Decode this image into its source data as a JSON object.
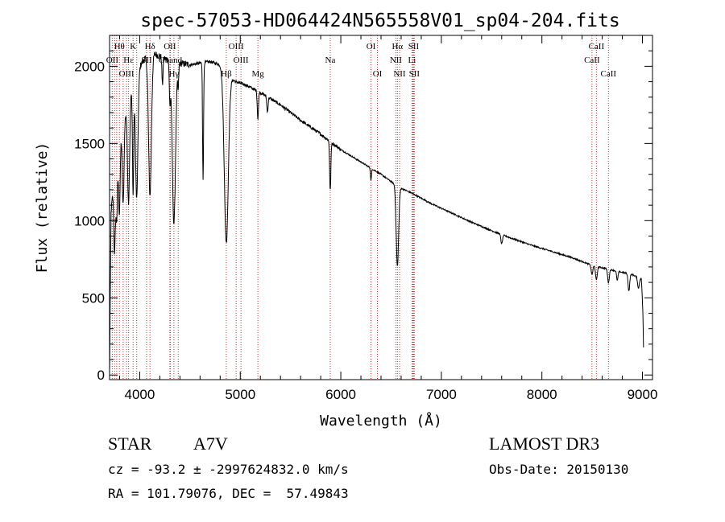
{
  "chart_data": {
    "type": "line",
    "title": "spec-57053-HD064424N565558V01_sp04-204.fits",
    "xlabel": "Wavelength (Å)",
    "ylabel": "Flux (relative)",
    "xlim": [
      3700,
      9100
    ],
    "ylim": [
      -30,
      2200
    ],
    "xticks": [
      4000,
      5000,
      6000,
      7000,
      8000,
      9000
    ],
    "yticks": [
      0,
      500,
      1000,
      1500,
      2000
    ],
    "grid": false,
    "colors": {
      "spectrum": "#000000",
      "lines": "#cc3333"
    },
    "spectrum": {
      "continuum": [
        [
          3700,
          0
        ],
        [
          3715,
          1050
        ],
        [
          3740,
          1250
        ],
        [
          3780,
          1400
        ],
        [
          3820,
          1620
        ],
        [
          3860,
          1700
        ],
        [
          3900,
          1800
        ],
        [
          3950,
          1900
        ],
        [
          4000,
          2000
        ],
        [
          4050,
          2050
        ],
        [
          4150,
          2080
        ],
        [
          4250,
          2050
        ],
        [
          4400,
          2020
        ],
        [
          4500,
          2010
        ],
        [
          4600,
          2020
        ],
        [
          4700,
          2030
        ],
        [
          4800,
          2010
        ],
        [
          4870,
          1950
        ],
        [
          4950,
          1900
        ],
        [
          5050,
          1880
        ],
        [
          5200,
          1830
        ],
        [
          5400,
          1750
        ],
        [
          5600,
          1650
        ],
        [
          5800,
          1560
        ],
        [
          6000,
          1460
        ],
        [
          6200,
          1380
        ],
        [
          6400,
          1300
        ],
        [
          6550,
          1230
        ],
        [
          6600,
          1210
        ],
        [
          6700,
          1180
        ],
        [
          6900,
          1110
        ],
        [
          7100,
          1050
        ],
        [
          7300,
          990
        ],
        [
          7500,
          935
        ],
        [
          7700,
          885
        ],
        [
          7900,
          840
        ],
        [
          8100,
          800
        ],
        [
          8300,
          760
        ],
        [
          8500,
          710
        ],
        [
          8700,
          680
        ],
        [
          8900,
          650
        ],
        [
          8990,
          620
        ],
        [
          9005,
          400
        ],
        [
          9010,
          180
        ]
      ],
      "absorption": [
        [
          3750,
          500,
          8
        ],
        [
          3771,
          350,
          7
        ],
        [
          3798,
          450,
          8
        ],
        [
          3835,
          550,
          9
        ],
        [
          3889,
          650,
          10
        ],
        [
          3934,
          700,
          6
        ],
        [
          3970,
          800,
          12
        ],
        [
          4102,
          900,
          14
        ],
        [
          4226,
          180,
          5
        ],
        [
          4300,
          250,
          6
        ],
        [
          4340,
          1050,
          16
        ],
        [
          4383,
          150,
          5
        ],
        [
          4630,
          750,
          5
        ],
        [
          4861,
          1100,
          20
        ],
        [
          5175,
          180,
          6
        ],
        [
          5270,
          100,
          6
        ],
        [
          5895,
          320,
          6
        ],
        [
          6300,
          80,
          5
        ],
        [
          6563,
          520,
          12
        ],
        [
          7600,
          60,
          8
        ],
        [
          8498,
          60,
          8
        ],
        [
          8542,
          90,
          8
        ],
        [
          8662,
          90,
          8
        ],
        [
          8750,
          60,
          7
        ],
        [
          8865,
          110,
          8
        ],
        [
          8960,
          70,
          8
        ]
      ],
      "noise_amplitude": 20
    },
    "line_markers": [
      {
        "label": "Hθ",
        "wavelength": 3798,
        "row": 0
      },
      {
        "label": "K",
        "wavelength": 3934,
        "row": 0
      },
      {
        "label": "Hδ",
        "wavelength": 4102,
        "row": 0
      },
      {
        "label": "OII",
        "wavelength": 4300,
        "row": 0
      },
      {
        "label": "OIII",
        "wavelength": 4959,
        "row": 0
      },
      {
        "label": "OIII",
        "wavelength": 5007,
        "row": 1
      },
      {
        "label": "OII",
        "wavelength": 3727,
        "row": 1
      },
      {
        "label": "Hε",
        "wavelength": 3889,
        "row": 1
      },
      {
        "label": "SII",
        "wavelength": 4068,
        "row": 1
      },
      {
        "label": "Gband",
        "wavelength": 4305,
        "row": 1
      },
      {
        "label": "OIII",
        "wavelength": 3869,
        "row": 2
      },
      {
        "label": "Hγ",
        "wavelength": 4340,
        "row": 2
      },
      {
        "label": "Hβ",
        "wavelength": 4861,
        "row": 2
      },
      {
        "label": "Mg",
        "wavelength": 5175,
        "row": 2
      },
      {
        "label": "Na",
        "wavelength": 5895,
        "row": 1
      },
      {
        "label": "OI",
        "wavelength": 6300,
        "row": 0
      },
      {
        "label": "OI",
        "wavelength": 6364,
        "row": 2
      },
      {
        "label": "Hα",
        "wavelength": 6563,
        "row": 0
      },
      {
        "label": "SII",
        "wavelength": 6724,
        "row": 0
      },
      {
        "label": "NII",
        "wavelength": 6548,
        "row": 1
      },
      {
        "label": "Li",
        "wavelength": 6708,
        "row": 1
      },
      {
        "label": "NII",
        "wavelength": 6584,
        "row": 2
      },
      {
        "label": "SII",
        "wavelength": 6731,
        "row": 2
      },
      {
        "label": "CaII",
        "wavelength": 8542,
        "row": 0
      },
      {
        "label": "CaII",
        "wavelength": 8498,
        "row": 1
      },
      {
        "label": "CaII",
        "wavelength": 8662,
        "row": 2
      }
    ],
    "extra_line_positions": [
      3750,
      3771,
      3835,
      3970,
      4383,
      6716
    ]
  },
  "info": {
    "object_type": "STAR",
    "subclass": "A7V",
    "survey": "LAMOST DR3",
    "redshift_text": "cz = -93.2 ± -2997624832.0 km/s",
    "obs_date": "Obs-Date: 20150130",
    "coords": "RA = 101.79076, DEC =  57.49843"
  }
}
